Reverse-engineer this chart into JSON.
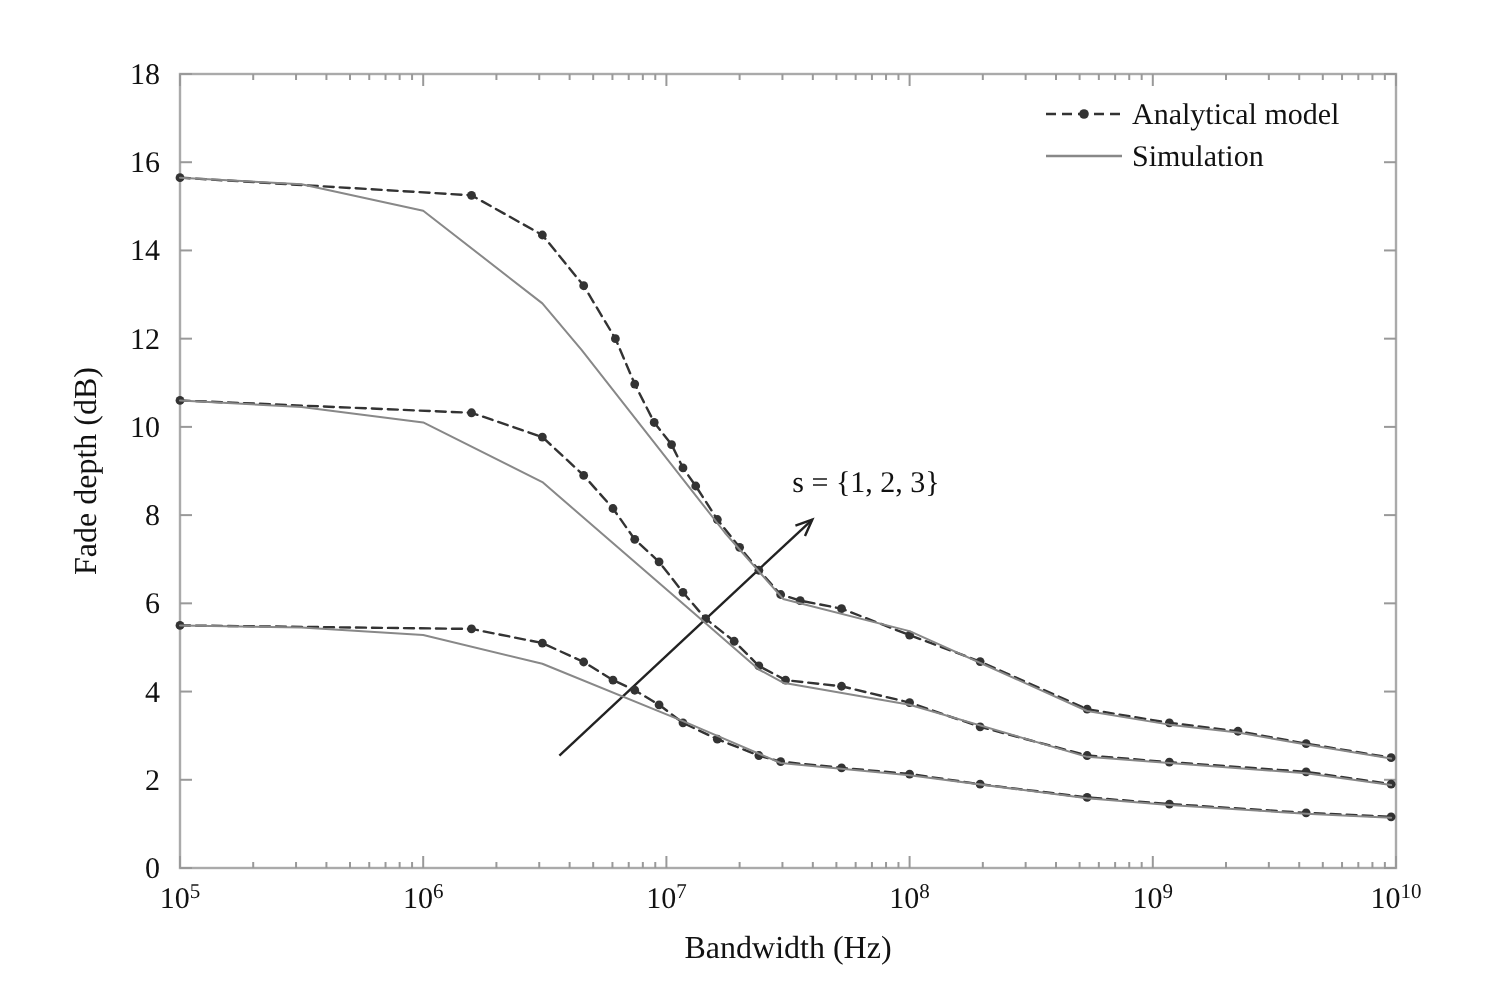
{
  "chart_data": {
    "type": "line",
    "xlabel": "Bandwidth (Hz)",
    "ylabel": "Fade depth (dB)",
    "log": "x",
    "grid": false,
    "legend": "top right",
    "xlim": [
      100000,
      10000000000
    ],
    "xticks": [
      {
        "value": 100000,
        "label": "10$^{5}$"
      },
      {
        "value": 1000000,
        "label": "10$^{6}$"
      },
      {
        "value": 10000000,
        "label": "10$^{7}$"
      },
      {
        "value": 100000000,
        "label": "10$^{8}$"
      },
      {
        "value": 1000000000,
        "label": "10$^{9}$"
      },
      {
        "value": 10000000000,
        "label": "10$^{10}$"
      }
    ],
    "ylim": [
      0,
      18
    ],
    "yticks": [
      0,
      2,
      4,
      6,
      8,
      10,
      12,
      14,
      16,
      18
    ],
    "annotations": [
      "s = {1, 2, 3}"
    ],
    "series": [
      {
        "name": "Analytical model",
        "color": "#333333",
        "line_style": "dashed",
        "marker": "circle",
        "x": [
          100000,
          1580000,
          3090000,
          4570000,
          6170000,
          7410000,
          8910000,
          10500000,
          11700000,
          13200000,
          16200000,
          20000000,
          24000000,
          29500000,
          35500000,
          52500000,
          100000000,
          195000000,
          537000000,
          1170000000,
          2240000000,
          4270000000,
          9550000000
        ],
        "values": [
          15.65,
          15.25,
          14.35,
          13.2,
          12.0,
          10.97,
          10.1,
          9.6,
          9.07,
          8.66,
          7.9,
          7.27,
          6.75,
          6.2,
          6.06,
          5.88,
          5.28,
          4.68,
          3.6,
          3.29,
          3.1,
          2.82,
          2.5
        ]
      },
      {
        "color": "#333333",
        "line_style": "dashed",
        "marker": "circle",
        "x": [
          100000,
          1580000,
          3090000,
          4570000,
          6030000,
          7410000,
          9330000,
          11700000,
          14500000,
          19000000,
          24000000,
          30900000,
          52500000,
          100000000,
          195000000,
          537000000,
          1170000000,
          4270000000,
          9550000000
        ],
        "values": [
          10.6,
          10.32,
          9.77,
          8.9,
          8.15,
          7.45,
          6.94,
          6.25,
          5.65,
          5.14,
          4.58,
          4.26,
          4.12,
          3.75,
          3.2,
          2.55,
          2.4,
          2.18,
          1.9
        ]
      },
      {
        "color": "#333333",
        "line_style": "dashed",
        "marker": "circle",
        "x": [
          100000,
          1580000,
          3090000,
          4570000,
          6030000,
          7410000,
          9330000,
          11700000,
          16200000,
          24000000,
          29500000,
          52500000,
          100000000,
          195000000,
          537000000,
          1170000000,
          4270000000,
          9550000000
        ],
        "values": [
          5.5,
          5.42,
          5.1,
          4.67,
          4.26,
          4.03,
          3.7,
          3.29,
          2.92,
          2.55,
          2.41,
          2.27,
          2.13,
          1.9,
          1.6,
          1.45,
          1.25,
          1.16
        ]
      },
      {
        "name": "Simulation",
        "color": "#888888",
        "line_style": "solid",
        "marker": "none",
        "x": [
          100000,
          316000,
          1000000,
          3090000,
          4470000,
          17400000,
          30200000,
          100000000,
          537000000,
          1170000000,
          2240000000,
          4270000000,
          9550000000
        ],
        "values": [
          15.65,
          15.5,
          14.9,
          12.8,
          11.75,
          7.6,
          6.1,
          5.37,
          3.56,
          3.25,
          3.07,
          2.8,
          2.48
        ]
      },
      {
        "color": "#888888",
        "line_style": "solid",
        "marker": "none",
        "x": [
          100000,
          316000,
          1000000,
          3090000,
          13800000,
          24000000,
          30200000,
          100000000,
          537000000,
          1170000000,
          4270000000,
          9550000000
        ],
        "values": [
          10.6,
          10.45,
          10.1,
          8.75,
          5.65,
          4.5,
          4.2,
          3.7,
          2.52,
          2.38,
          2.15,
          1.88
        ]
      },
      {
        "color": "#888888",
        "line_style": "solid",
        "marker": "none",
        "x": [
          100000,
          316000,
          1000000,
          3090000,
          11700000,
          29500000,
          100000000,
          537000000,
          1170000000,
          4270000000,
          9550000000
        ],
        "values": [
          5.5,
          5.45,
          5.28,
          4.63,
          3.33,
          2.38,
          2.1,
          1.58,
          1.43,
          1.23,
          1.14
        ]
      }
    ]
  }
}
